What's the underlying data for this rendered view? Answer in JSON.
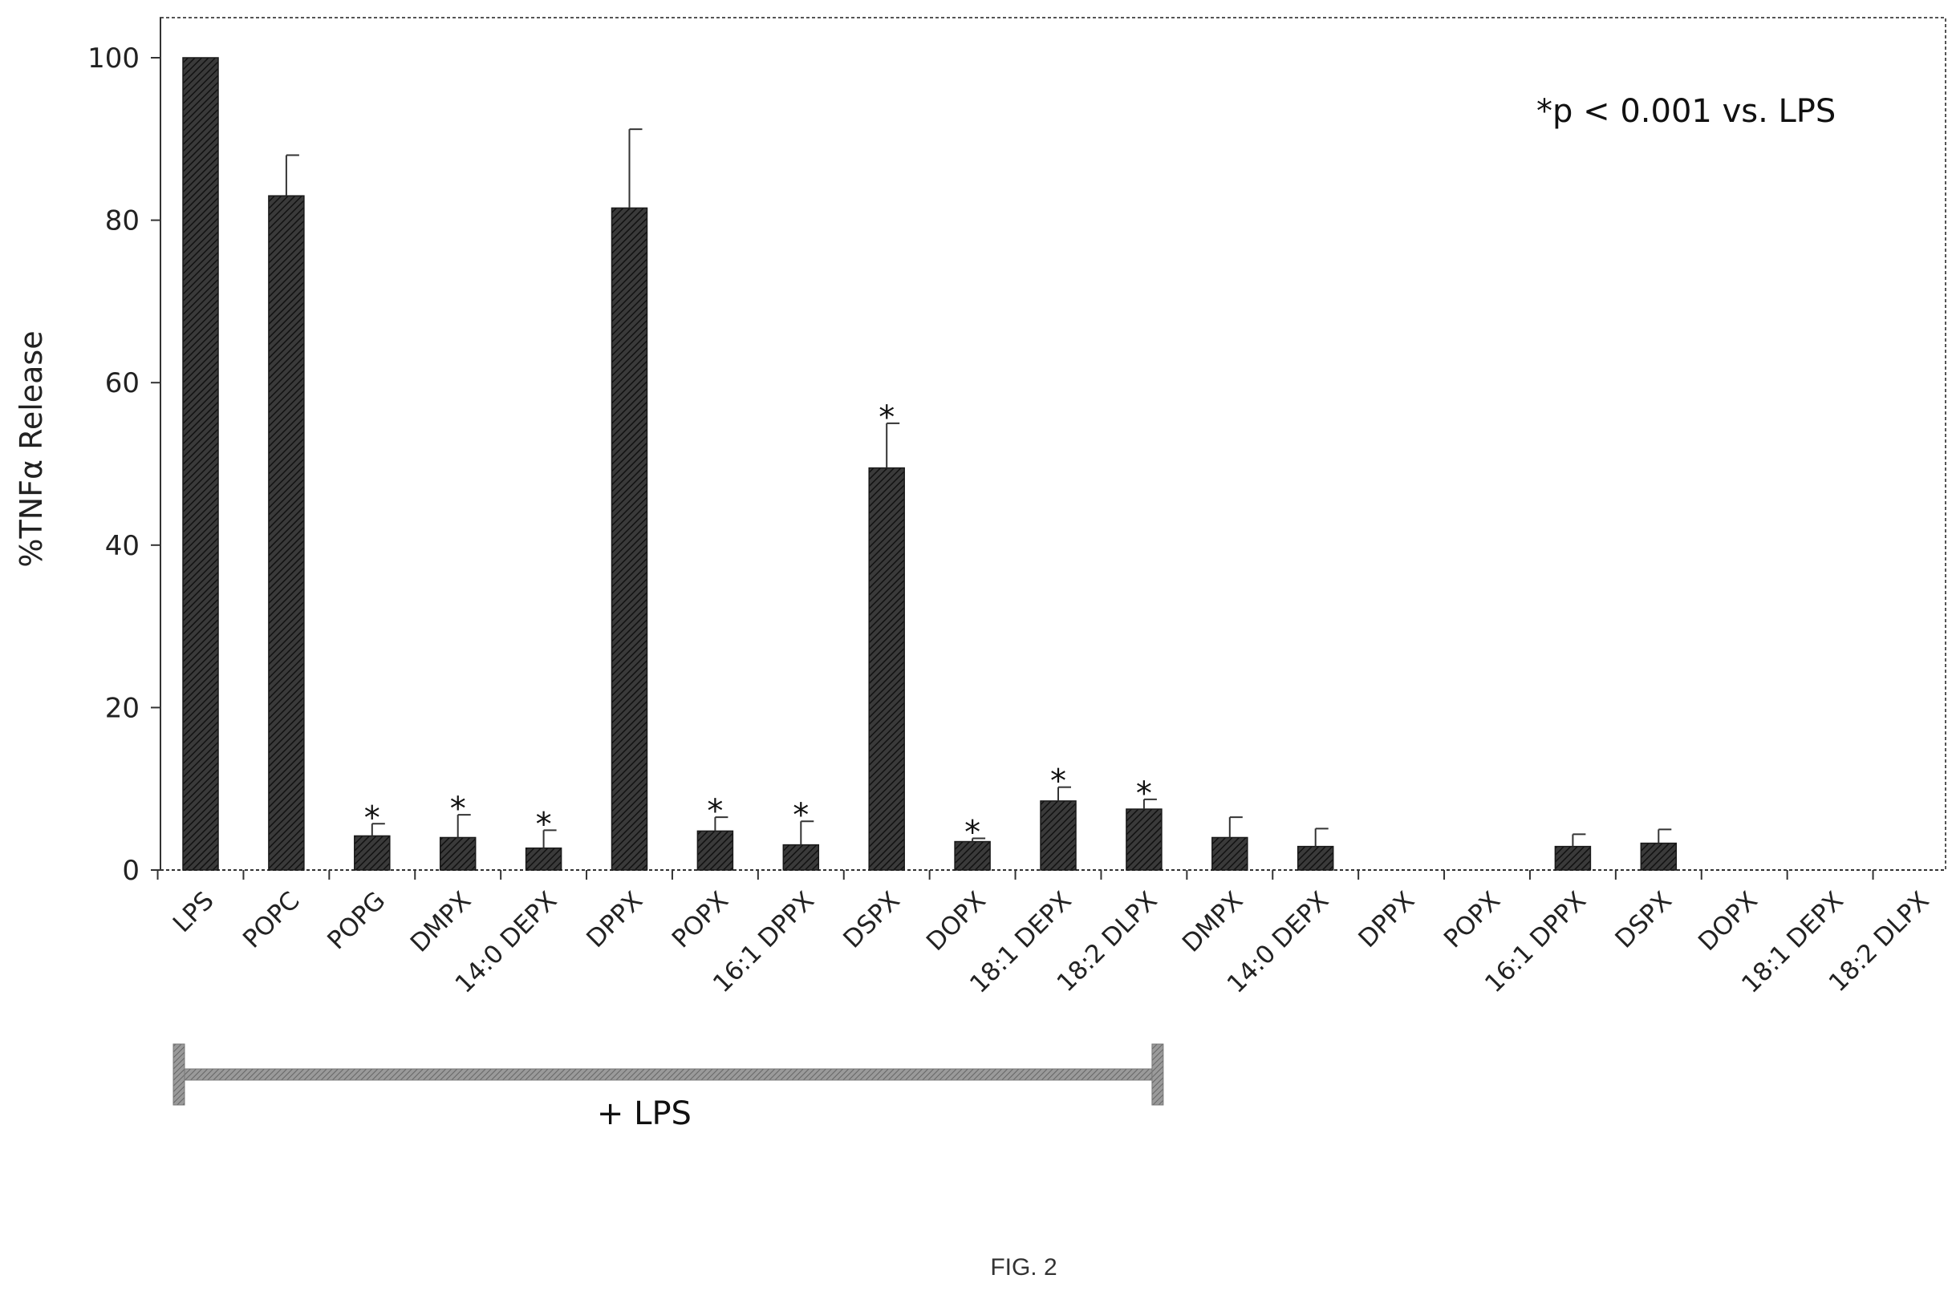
{
  "chart_data": {
    "type": "bar",
    "title": "",
    "xlabel": "",
    "ylabel": "%TNFα Release",
    "ylim": [
      0,
      100
    ],
    "yticks": [
      "0",
      "20",
      "40",
      "60",
      "80",
      "100"
    ],
    "grid": false,
    "categories": [
      "LPS",
      "POPC",
      "POPG",
      "DMPX",
      "14:0 DEPX",
      "DPPX",
      "POPX",
      "16:1 DPPX",
      "DSPX",
      "DOPX",
      "18:1 DEPX",
      "18:2 DLPX",
      "DMPX",
      "14:0 DEPX",
      "DPPX",
      "POPX",
      "16:1 DPPX",
      "DSPX",
      "DOPX",
      "18:1 DEPX",
      "18:2 DLPX"
    ],
    "values": [
      100,
      83,
      4.2,
      4,
      2.7,
      81.5,
      4.8,
      3.1,
      49.5,
      3.5,
      8.5,
      7.5,
      4,
      2.9,
      0,
      0,
      2.9,
      3.3,
      0,
      0,
      0
    ],
    "errors": [
      0,
      5,
      1.5,
      2.8,
      2.2,
      9.7,
      1.7,
      2.9,
      5.5,
      0.4,
      1.7,
      1.2,
      2.5,
      2.2,
      0,
      0,
      1.5,
      1.7,
      0,
      0,
      0
    ],
    "significant": [
      false,
      false,
      true,
      true,
      true,
      false,
      true,
      true,
      true,
      true,
      true,
      true,
      false,
      false,
      false,
      false,
      false,
      false,
      false,
      false,
      false
    ],
    "star_symbol": "*",
    "annotation": "*p < 0.001 vs. LPS",
    "bracket": {
      "label": "+ LPS",
      "from_index": 0,
      "to_index": 11
    },
    "bar_color": "#2e2e2e"
  },
  "figure_caption": "FIG. 2"
}
